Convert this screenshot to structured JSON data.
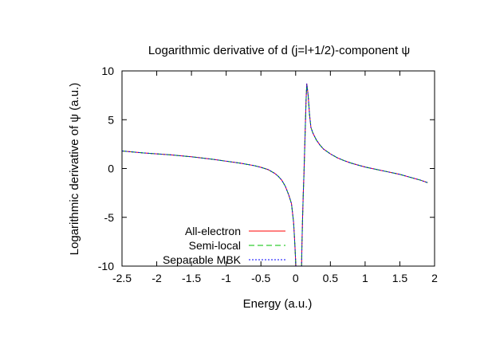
{
  "chart_data": {
    "type": "line",
    "title": "Logarithmic derivative of d (j=l+1/2)-component ψ",
    "xlabel": "Energy (a.u.)",
    "ylabel": "Logarithmic derivative of ψ (a.u.)",
    "xlim": [
      -2.5,
      2
    ],
    "ylim": [
      -10,
      10
    ],
    "xticks": [
      -2.5,
      -2,
      -1.5,
      -1,
      -0.5,
      0,
      0.5,
      1,
      1.5,
      2
    ],
    "xtick_labels": [
      "-2.5",
      "-2",
      "-1.5",
      "-1",
      "-0.5",
      "0",
      "0.5",
      "1",
      "1.5",
      "2"
    ],
    "yticks": [
      -10,
      -5,
      0,
      5,
      10
    ],
    "ytick_labels": [
      "-10",
      "-5",
      "0",
      "5",
      "10"
    ],
    "grid": false,
    "legend_position": "bottom-left",
    "series": [
      {
        "name": "All-electron",
        "color": "#ff0000",
        "dash": "",
        "branches": [
          {
            "x": [
              -2.5,
              -2.2,
              -2.0,
              -1.8,
              -1.5,
              -1.2,
              -1.0,
              -0.8,
              -0.6,
              -0.5,
              -0.4,
              -0.3,
              -0.25,
              -0.2,
              -0.15,
              -0.1,
              -0.06,
              -0.03,
              -0.02,
              -0.01,
              0.0,
              0.01,
              0.02
            ],
            "y": [
              1.8,
              1.6,
              1.5,
              1.4,
              1.2,
              0.95,
              0.75,
              0.55,
              0.3,
              0.12,
              -0.1,
              -0.5,
              -0.8,
              -1.2,
              -1.8,
              -2.7,
              -3.6,
              -5.5,
              -6.7,
              -8.0,
              -9.5,
              -10.8,
              -12
            ]
          },
          {
            "x": [
              0.08,
              0.09,
              0.1,
              0.11,
              0.12,
              0.13,
              0.14,
              0.15,
              0.16,
              0.18,
              0.2,
              0.22,
              0.25,
              0.3,
              0.35,
              0.4,
              0.5,
              0.6,
              0.7,
              0.8,
              0.9,
              1.0,
              1.1,
              1.2,
              1.3,
              1.4,
              1.5,
              1.6,
              1.7,
              1.8,
              1.9
            ],
            "y": [
              -12,
              -8.0,
              -5.0,
              -2.5,
              -0.5,
              2.0,
              4.5,
              7.0,
              8.7,
              7.5,
              5.5,
              4.2,
              3.6,
              2.9,
              2.4,
              2.0,
              1.5,
              1.1,
              0.8,
              0.55,
              0.35,
              0.15,
              0.0,
              -0.15,
              -0.3,
              -0.45,
              -0.6,
              -0.8,
              -1.0,
              -1.2,
              -1.45
            ]
          }
        ]
      },
      {
        "name": "Semi-local",
        "color": "#00c000",
        "dash": "7,4",
        "branches": [
          {
            "x": [
              -2.5,
              -2.2,
              -2.0,
              -1.8,
              -1.5,
              -1.2,
              -1.0,
              -0.8,
              -0.6,
              -0.5,
              -0.4,
              -0.3,
              -0.25,
              -0.2,
              -0.15,
              -0.1,
              -0.06,
              -0.03,
              -0.02,
              -0.01,
              0.0,
              0.01,
              0.02
            ],
            "y": [
              1.8,
              1.6,
              1.5,
              1.4,
              1.2,
              0.95,
              0.75,
              0.55,
              0.3,
              0.12,
              -0.1,
              -0.5,
              -0.8,
              -1.2,
              -1.8,
              -2.7,
              -3.6,
              -5.5,
              -6.7,
              -8.0,
              -9.5,
              -10.8,
              -12
            ]
          },
          {
            "x": [
              0.08,
              0.09,
              0.1,
              0.11,
              0.12,
              0.13,
              0.14,
              0.15,
              0.16,
              0.18,
              0.2,
              0.22,
              0.25,
              0.3,
              0.35,
              0.4,
              0.5,
              0.6,
              0.7,
              0.8,
              0.9,
              1.0,
              1.1,
              1.2,
              1.3,
              1.4,
              1.5,
              1.6,
              1.7,
              1.8,
              1.9
            ],
            "y": [
              -12,
              -8.0,
              -5.0,
              -2.5,
              -0.5,
              2.0,
              4.5,
              7.0,
              8.6,
              7.5,
              5.5,
              4.2,
              3.6,
              2.9,
              2.4,
              2.0,
              1.5,
              1.1,
              0.8,
              0.55,
              0.35,
              0.15,
              0.0,
              -0.15,
              -0.3,
              -0.45,
              -0.6,
              -0.8,
              -1.0,
              -1.2,
              -1.45
            ]
          }
        ]
      },
      {
        "name": "Separable MBK",
        "color": "#0000ff",
        "dash": "2,2",
        "branches": [
          {
            "x": [
              -2.5,
              -2.2,
              -2.0,
              -1.8,
              -1.5,
              -1.2,
              -1.0,
              -0.8,
              -0.6,
              -0.5,
              -0.4,
              -0.3,
              -0.25,
              -0.2,
              -0.15,
              -0.1,
              -0.06,
              -0.03,
              -0.02,
              -0.01,
              0.0,
              0.01,
              0.02
            ],
            "y": [
              1.8,
              1.6,
              1.5,
              1.4,
              1.2,
              0.95,
              0.75,
              0.55,
              0.3,
              0.12,
              -0.1,
              -0.5,
              -0.8,
              -1.2,
              -1.8,
              -2.7,
              -3.6,
              -5.5,
              -6.7,
              -8.0,
              -9.5,
              -10.8,
              -12
            ]
          },
          {
            "x": [
              0.08,
              0.09,
              0.1,
              0.11,
              0.12,
              0.13,
              0.14,
              0.15,
              0.16,
              0.18,
              0.2,
              0.22,
              0.25,
              0.3,
              0.35,
              0.4,
              0.5,
              0.6,
              0.7,
              0.8,
              0.9,
              1.0,
              1.1,
              1.2,
              1.3,
              1.4,
              1.5,
              1.6,
              1.7,
              1.8,
              1.9
            ],
            "y": [
              -12,
              -8.0,
              -5.0,
              -2.5,
              -0.5,
              2.0,
              4.5,
              7.0,
              8.7,
              7.5,
              5.5,
              4.2,
              3.6,
              2.9,
              2.4,
              2.0,
              1.5,
              1.1,
              0.8,
              0.55,
              0.35,
              0.15,
              0.0,
              -0.15,
              -0.3,
              -0.45,
              -0.6,
              -0.8,
              -1.0,
              -1.2,
              -1.45
            ]
          }
        ]
      }
    ]
  }
}
